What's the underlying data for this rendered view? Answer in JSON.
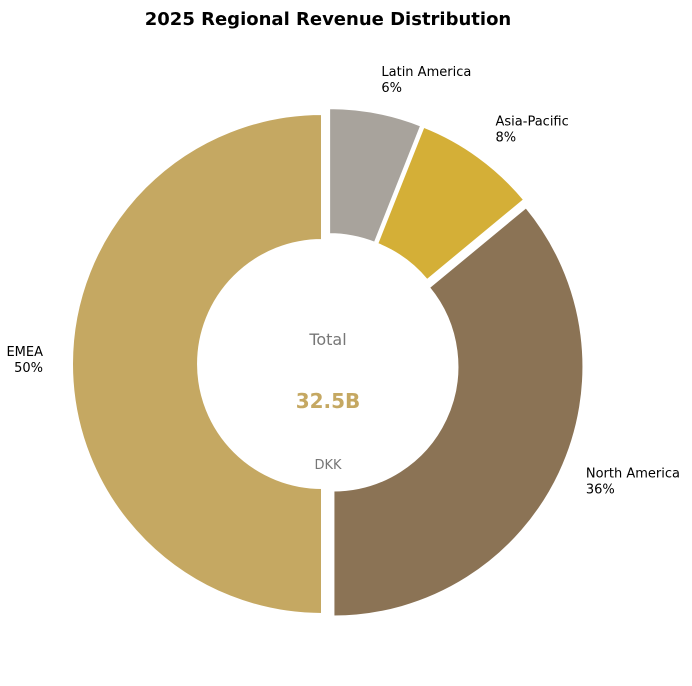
{
  "chart_data": {
    "type": "pie",
    "variant": "donut",
    "title": "2025 Regional Revenue Distribution",
    "categories": [
      "Latin America",
      "Asia-Pacific",
      "North America",
      "EMEA"
    ],
    "values": [
      6,
      8,
      36,
      50
    ],
    "value_labels": [
      "6%",
      "8%",
      "36%",
      "50%"
    ],
    "colors": [
      "#A8A39C",
      "#D4AF37",
      "#8B7355",
      "#C5A862"
    ],
    "direction": "clockwise",
    "start": "top (12 o'clock)",
    "center": {
      "label": "Total",
      "value": "32.5B",
      "unit": "DKK",
      "label_color": "#777777",
      "value_color": "#C5A862"
    }
  }
}
